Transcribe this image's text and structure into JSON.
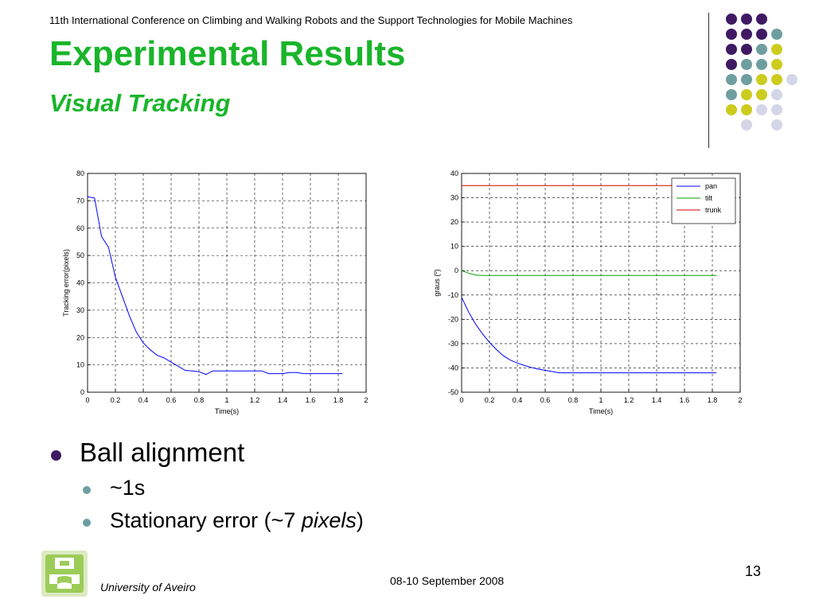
{
  "header": {
    "conference": "11th International Conference on Climbing and Walking Robots and the Support Technologies for Mobile Machines",
    "title": "Experimental Results",
    "subtitle": "Visual Tracking"
  },
  "colors": {
    "title_green": "#19b52a",
    "dark_purple": "#3f1a63",
    "teal": "#6e9ea0",
    "olive_yellow": "#cccc1f",
    "lavender": "#d5d5e8"
  },
  "decor_dots": {
    "rows": [
      [
        "dark_purple",
        "dark_purple",
        "dark_purple"
      ],
      [
        "dark_purple",
        "dark_purple",
        "dark_purple",
        "teal"
      ],
      [
        "dark_purple",
        "dark_purple",
        "teal",
        "olive_yellow"
      ],
      [
        "dark_purple",
        "teal",
        "teal",
        "olive_yellow"
      ],
      [
        "teal",
        "teal",
        "olive_yellow",
        "olive_yellow",
        "lavender"
      ],
      [
        "teal",
        "olive_yellow",
        "olive_yellow",
        "lavender"
      ],
      [
        "olive_yellow",
        "olive_yellow",
        "lavender",
        "lavender"
      ],
      [
        "",
        "lavender",
        "",
        "lavender"
      ]
    ]
  },
  "chart_data": [
    {
      "type": "line",
      "xlabel": "Time(s)",
      "ylabel": "Tracking error(pixels)",
      "xlim": [
        0,
        2
      ],
      "ylim": [
        0,
        80
      ],
      "xticks": [
        "0",
        "0.2",
        "0.4",
        "0.6",
        "0.8",
        "1",
        "1.2",
        "1.4",
        "1.6",
        "1.8",
        "2"
      ],
      "yticks": [
        "0",
        "10",
        "20",
        "30",
        "40",
        "50",
        "60",
        "70",
        "80"
      ],
      "grid": true,
      "series": [
        {
          "color": "#0000ff",
          "x": [
            0.0,
            0.05,
            0.1,
            0.15,
            0.2,
            0.25,
            0.3,
            0.35,
            0.4,
            0.45,
            0.5,
            0.55,
            0.6,
            0.65,
            0.7,
            0.75,
            0.8,
            0.85,
            0.9,
            0.95,
            1.0,
            1.05,
            1.1,
            1.15,
            1.2,
            1.25,
            1.3,
            1.35,
            1.4,
            1.45,
            1.5,
            1.55,
            1.6,
            1.65,
            1.7,
            1.75,
            1.8,
            1.83
          ],
          "y": [
            71.5,
            71,
            57,
            53,
            42,
            35,
            28,
            22,
            18,
            15.5,
            13.5,
            12.5,
            11,
            9.5,
            8,
            7.8,
            7.5,
            6.5,
            7.8,
            7.8,
            7.8,
            7.8,
            7.8,
            7.8,
            7.8,
            7.8,
            6.8,
            6.8,
            6.8,
            7.2,
            7.2,
            6.8,
            6.8,
            6.8,
            6.8,
            6.8,
            6.8,
            6.8
          ]
        }
      ]
    },
    {
      "type": "line",
      "xlabel": "Time(s)",
      "ylabel": "graus (º)",
      "xlim": [
        0,
        2
      ],
      "ylim": [
        -50,
        40
      ],
      "xticks": [
        "0",
        "0.2",
        "0.4",
        "0.6",
        "0.8",
        "1",
        "1.2",
        "1.4",
        "1.6",
        "1.8",
        "2"
      ],
      "yticks": [
        "-50",
        "-40",
        "-30",
        "-20",
        "-10",
        "0",
        "10",
        "20",
        "30",
        "40"
      ],
      "grid": true,
      "legend": "top-right",
      "series": [
        {
          "name": "pan",
          "color": "#0000ff",
          "x": [
            0.0,
            0.05,
            0.1,
            0.15,
            0.2,
            0.25,
            0.3,
            0.35,
            0.4,
            0.45,
            0.5,
            0.55,
            0.6,
            0.65,
            0.7,
            0.8,
            0.9,
            1.0,
            1.1,
            1.2,
            1.3,
            1.4,
            1.5,
            1.6,
            1.7,
            1.8,
            1.83
          ],
          "y": [
            -11,
            -17,
            -22,
            -26,
            -29.5,
            -32.5,
            -35,
            -36.8,
            -38,
            -39,
            -39.8,
            -40.5,
            -41,
            -41.5,
            -42,
            -42,
            -42,
            -42,
            -42,
            -42,
            -42,
            -42,
            -42,
            -42,
            -42,
            -42,
            -42
          ]
        },
        {
          "name": "tilt",
          "color": "#00a000",
          "x": [
            0.0,
            0.05,
            0.1,
            0.15,
            0.3,
            0.6,
            0.9,
            1.2,
            1.5,
            1.83
          ],
          "y": [
            0,
            -1,
            -1.8,
            -2,
            -2,
            -2,
            -2,
            -2,
            -2,
            -2
          ]
        },
        {
          "name": "trunk",
          "color": "#d40000",
          "x": [
            0.0,
            1.83
          ],
          "y": [
            35,
            35
          ]
        }
      ]
    }
  ],
  "bullets": [
    {
      "level": 1,
      "text": "Ball alignment"
    },
    {
      "level": 2,
      "text": "~1s"
    },
    {
      "level": 2,
      "text": "Stationary error (~7 ",
      "italic": "pixels",
      "tail": ")"
    }
  ],
  "footer": {
    "university": "University of Aveiro",
    "date": "08-10 September 2008",
    "page": "13"
  }
}
